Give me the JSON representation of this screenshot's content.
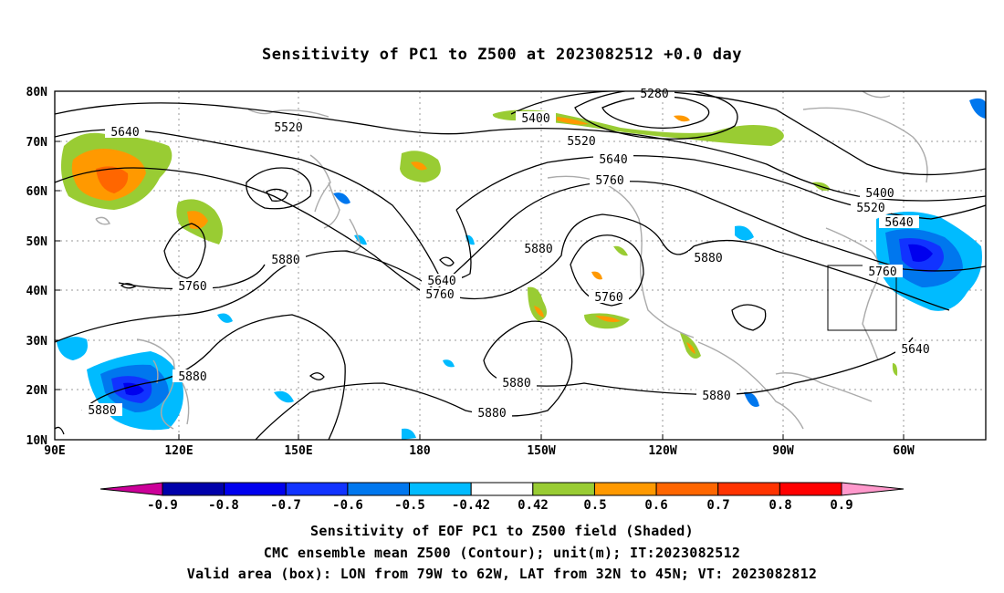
{
  "title": "Sensitivity of PC1 to Z500 at 2023082512 +0.0 day",
  "lat_labels": [
    "80N",
    "70N",
    "60N",
    "50N",
    "40N",
    "30N",
    "20N",
    "10N"
  ],
  "lon_labels": [
    "90E",
    "120E",
    "150E",
    "180",
    "150W",
    "120W",
    "90W",
    "60W"
  ],
  "contour_labels": [
    "5280",
    "5400",
    "5520",
    "5520",
    "5640",
    "5640",
    "5640",
    "5760",
    "5760",
    "5760",
    "5760",
    "5760",
    "5880",
    "5880",
    "5880",
    "5880",
    "5880",
    "5880",
    "5880",
    "5880",
    "5400",
    "5520",
    "5640",
    "5640"
  ],
  "colorbar": {
    "labels": [
      "-0.9",
      "-0.8",
      "-0.7",
      "-0.6",
      "-0.5",
      "-0.42",
      "0.42",
      "0.5",
      "0.6",
      "0.7",
      "0.8",
      "0.9"
    ],
    "colors": [
      "#cc0099",
      "#0000aa",
      "#0000ee",
      "#1133ff",
      "#0077ee",
      "#00bbff",
      "#ffffff",
      "#99cc33",
      "#ff9900",
      "#ff6600",
      "#ff3300",
      "#ff0000",
      "#ff99cc"
    ]
  },
  "footer": {
    "line1": "Sensitivity of EOF PC1 to Z500 field (Shaded)",
    "line2": "CMC ensemble mean Z500 (Contour); unit(m); IT:2023082512",
    "line3": "Valid area (box): LON from 79W to 62W, LAT from 32N to 45N; VT: 2023082812"
  }
}
